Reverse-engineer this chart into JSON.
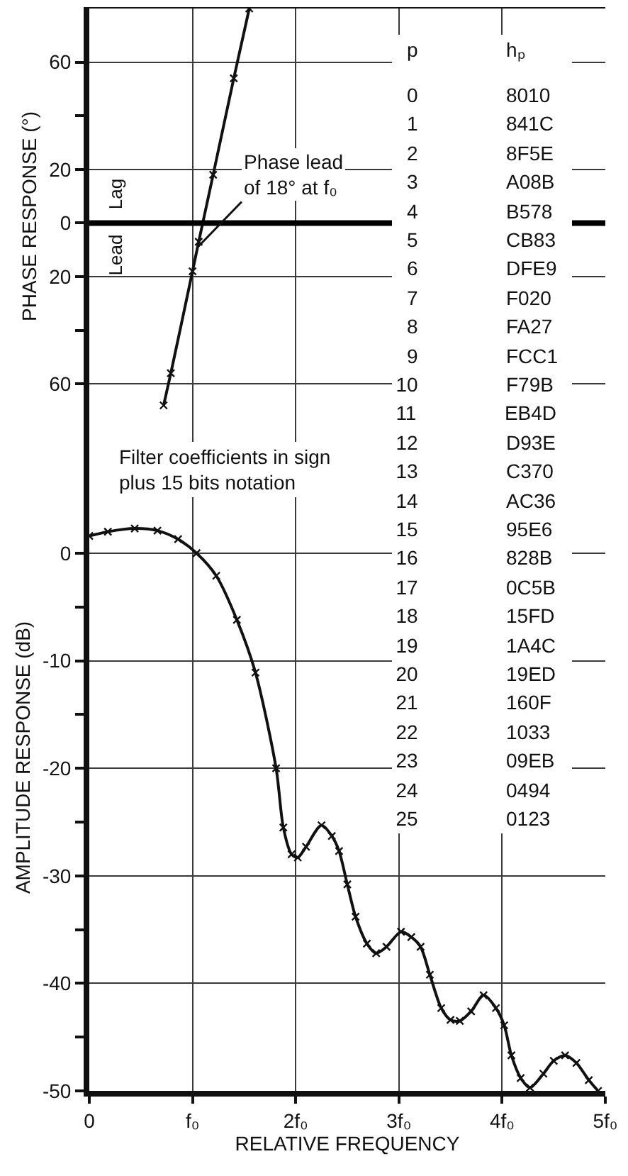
{
  "chart_data": [
    {
      "type": "line",
      "ylabel": "PHASE RESPONSE (°)",
      "annotations": [
        "Lag",
        "Lead",
        {
          "text": "Phase lead\nof 18° at f₀",
          "x": 1.05,
          "y": -9
        }
      ],
      "xlim": [
        0,
        5
      ],
      "xticks": [
        1,
        2,
        3,
        4
      ],
      "ylim": [
        -75,
        80
      ],
      "yticks": [
        {
          "value": -60,
          "label": "60"
        },
        {
          "value": -40,
          "label": null
        },
        {
          "value": -20,
          "label": "20"
        },
        0,
        20,
        {
          "value": 40,
          "label": null
        },
        60
      ],
      "tick_labels": "y",
      "grid": true,
      "marker": "cross",
      "line_style": "solid",
      "ref_lines": [
        {
          "axis": "y",
          "value": 0,
          "color": "#000000"
        }
      ],
      "series": [
        {
          "color": "#111111",
          "x": [
            0.72,
            0.79,
            1.0,
            1.06,
            1.2,
            1.4,
            1.55
          ],
          "values": [
            -68,
            -56,
            -18,
            -7,
            18,
            54,
            80
          ]
        }
      ]
    },
    {
      "type": "line",
      "xlabel": "RELATIVE FREQUENCY",
      "ylabel": "AMPLITUDE RESPONSE (dB)",
      "xlim": [
        0,
        5
      ],
      "xticks": [
        0,
        {
          "value": 1,
          "label": "f₀"
        },
        {
          "value": 2,
          "label": "2f₀"
        },
        {
          "value": 3,
          "label": "3f₀"
        },
        {
          "value": 4,
          "label": "4f₀"
        },
        {
          "value": 5,
          "label": "5f₀"
        }
      ],
      "ylim": [
        -50,
        12
      ],
      "yticks": [
        -50,
        {
          "value": -45,
          "label": null
        },
        -40,
        {
          "value": -35,
          "label": null
        },
        -30,
        {
          "value": -25,
          "label": null
        },
        -20,
        {
          "value": -15,
          "label": null
        },
        -10,
        {
          "value": -5,
          "label": null
        },
        0
      ],
      "grid": true,
      "marker": "cross",
      "line_style": "solid",
      "series": [
        {
          "color": "#111111",
          "x": [
            0,
            0.18,
            0.44,
            0.66,
            0.86,
            1.04,
            1.23,
            1.43,
            1.61,
            1.81,
            1.88,
            1.96,
            2.02,
            2.1,
            2.25,
            2.35,
            2.42,
            2.5,
            2.58,
            2.69,
            2.78,
            2.88,
            3.02,
            3.12,
            3.21,
            3.3,
            3.41,
            3.5,
            3.59,
            3.7,
            3.82,
            3.94,
            4.02,
            4.09,
            4.18,
            4.27,
            4.4,
            4.5,
            4.61,
            4.72,
            4.84,
            4.93
          ],
          "values": [
            1.6,
            2.0,
            2.3,
            2.1,
            1.3,
            0,
            -2.1,
            -6.2,
            -11.1,
            -20,
            -25.5,
            -28,
            -28.3,
            -27.3,
            -25.3,
            -26.3,
            -27.7,
            -30.8,
            -33.8,
            -36.3,
            -37.2,
            -36.6,
            -35.2,
            -35.7,
            -36.6,
            -39.2,
            -42.3,
            -43.4,
            -43.5,
            -42.6,
            -41.1,
            -42.3,
            -43.9,
            -46.7,
            -48.8,
            -49.7,
            -48.4,
            -47.2,
            -46.7,
            -47.4,
            -49,
            -50
          ]
        }
      ]
    },
    {
      "type": "other",
      "annotations": [
        "Filter coefficients in sign\nplus 15 bits notation",
        "p hₚ",
        "0 8010",
        "1 841C",
        "2 8F5E",
        "3 A08B",
        "4 B578",
        "5 CB83",
        "6 DFE9",
        "7 F020",
        "8 FA27",
        "9 FCC1",
        "10 F79B",
        "11 EB4D",
        "12 D93E",
        "13 C370",
        "14 AC36",
        "15 95E6",
        "16 828B",
        "17 0C5B",
        "18 15FD",
        "19 1A4C",
        "20 19ED",
        "21 160F",
        "22 1033",
        "23 09EB",
        "24 0494",
        "25 0123"
      ]
    }
  ]
}
